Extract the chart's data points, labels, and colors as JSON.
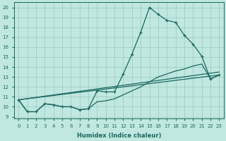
{
  "xlabel": "Humidex (Indice chaleur)",
  "bg_color": "#c0e8e0",
  "grid_color": "#98c8c0",
  "line_color": "#1a6860",
  "xlim": [
    -0.5,
    23.5
  ],
  "ylim": [
    8.8,
    20.5
  ],
  "xticks": [
    0,
    1,
    2,
    3,
    4,
    5,
    6,
    7,
    8,
    9,
    10,
    11,
    12,
    13,
    14,
    15,
    16,
    17,
    18,
    19,
    20,
    21,
    22,
    23
  ],
  "yticks": [
    9,
    10,
    11,
    12,
    13,
    14,
    15,
    16,
    17,
    18,
    19,
    20
  ],
  "line1_x": [
    0,
    1,
    2,
    3,
    4,
    5,
    6,
    7,
    8,
    9,
    10,
    11,
    12,
    13,
    14,
    15,
    16,
    17,
    18,
    19,
    20,
    21,
    22,
    23
  ],
  "line1_y": [
    10.7,
    9.5,
    9.5,
    10.3,
    10.2,
    10.0,
    10.0,
    9.7,
    9.8,
    11.6,
    11.5,
    11.5,
    13.3,
    15.3,
    17.5,
    20.0,
    19.3,
    18.7,
    18.5,
    17.2,
    16.3,
    15.1,
    12.8,
    13.2
  ],
  "line2_x": [
    0,
    1,
    2,
    3,
    4,
    5,
    6,
    7,
    8,
    9,
    10,
    11,
    12,
    13,
    14,
    15,
    16,
    17,
    18,
    19,
    20,
    21,
    22,
    23
  ],
  "line2_y": [
    10.7,
    9.5,
    9.5,
    10.3,
    10.2,
    10.0,
    10.0,
    9.7,
    9.8,
    10.5,
    10.6,
    10.8,
    11.2,
    11.6,
    12.0,
    12.5,
    13.0,
    13.3,
    13.6,
    13.8,
    14.1,
    14.3,
    12.8,
    13.2
  ],
  "line3_x": [
    0,
    23
  ],
  "line3_y": [
    10.7,
    13.2
  ],
  "line4_x": [
    0,
    23
  ],
  "line4_y": [
    10.7,
    13.5
  ]
}
